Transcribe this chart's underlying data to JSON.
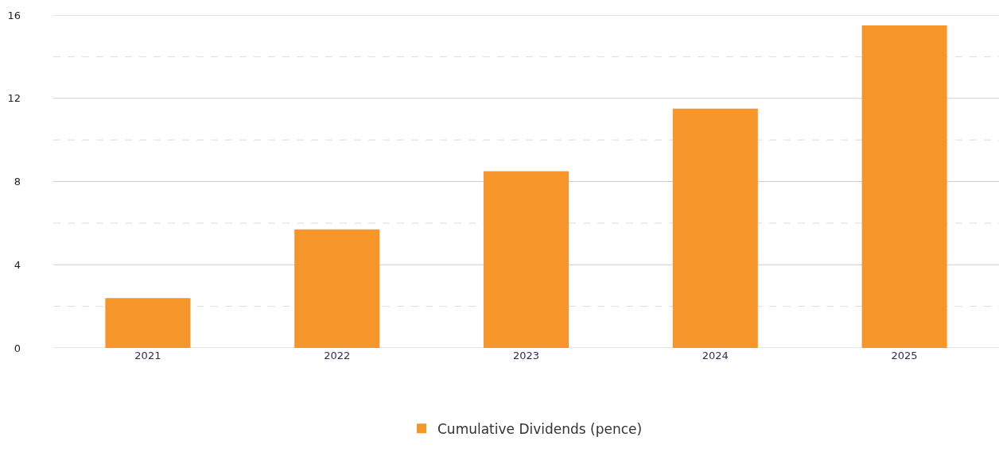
{
  "chart_data": {
    "type": "bar",
    "categories": [
      "2021",
      "2022",
      "2023",
      "2024",
      "2025"
    ],
    "series": [
      {
        "name": "Cumulative Dividends (pence)",
        "color": "#f5952a",
        "values": [
          2.4,
          5.7,
          8.5,
          11.5,
          15.5
        ]
      }
    ],
    "ylim": [
      0,
      16
    ],
    "yticks": [
      0,
      {
        "value": 2,
        "label": null
      },
      4,
      {
        "value": 6,
        "label": null
      },
      8,
      {
        "value": 10,
        "label": null
      },
      12,
      {
        "value": 14,
        "label": null
      },
      16
    ],
    "grid": "y",
    "legend": "bottom"
  }
}
